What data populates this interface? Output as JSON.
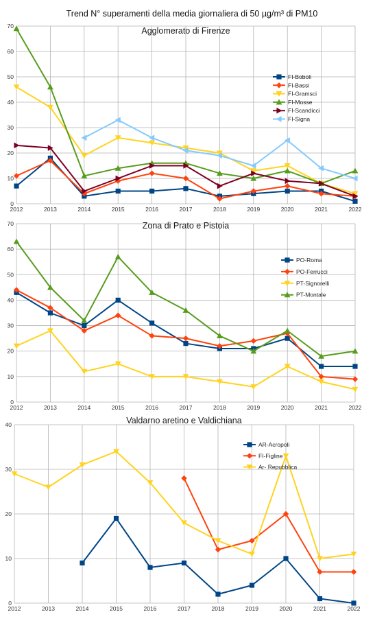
{
  "page_title": "Trend N° superamenti della media giornaliera di 50 µg/m³ di PM10",
  "chart_data": [
    {
      "type": "line",
      "title": "Agglomerato di Firenze",
      "xlabel": "",
      "ylabel": "",
      "x": [
        "2012",
        "2013",
        "2014",
        "2015",
        "2016",
        "2017",
        "2018",
        "2019",
        "2020",
        "2021",
        "2022"
      ],
      "ylim": [
        0,
        70
      ],
      "yticks": [
        0,
        10,
        20,
        30,
        40,
        50,
        60,
        70
      ],
      "grid": true,
      "legend_position": "right",
      "series": [
        {
          "name": "FI-Boboli",
          "color": "#004586",
          "marker": "square",
          "values": [
            7,
            18,
            3,
            5,
            5,
            6,
            3,
            4,
            5,
            5,
            1
          ]
        },
        {
          "name": "FI-Bassi",
          "color": "#ff420e",
          "marker": "diamond",
          "values": [
            11,
            17,
            4,
            9,
            12,
            10,
            2,
            5,
            7,
            4,
            3
          ]
        },
        {
          "name": "FI-Gramsci",
          "color": "#ffd320",
          "marker": "triangle-down",
          "values": [
            46,
            38,
            19,
            26,
            24,
            22,
            20,
            13,
            15,
            8,
            4
          ]
        },
        {
          "name": "FI-Mosse",
          "color": "#579d1c",
          "marker": "triangle-up",
          "values": [
            69,
            46,
            11,
            14,
            16,
            16,
            12,
            10,
            13,
            8,
            13
          ]
        },
        {
          "name": "FI-Scandicci",
          "color": "#7e0021",
          "marker": "triangle-right",
          "values": [
            23,
            22,
            5,
            10,
            15,
            15,
            7,
            12,
            9,
            8,
            3
          ]
        },
        {
          "name": "FI-Signa",
          "color": "#83caff",
          "marker": "triangle-left",
          "values": [
            null,
            null,
            26,
            33,
            26,
            21,
            19,
            15,
            25,
            14,
            10
          ]
        }
      ]
    },
    {
      "type": "line",
      "title": "Zona di Prato e Pistoia",
      "xlabel": "",
      "ylabel": "",
      "x": [
        "2012",
        "2013",
        "2014",
        "2015",
        "2016",
        "2017",
        "2018",
        "2019",
        "2020",
        "2021",
        "2022"
      ],
      "ylim": [
        0,
        70
      ],
      "yticks": [
        0,
        10,
        20,
        30,
        40,
        50,
        60,
        70
      ],
      "grid": true,
      "legend_position": "right",
      "series": [
        {
          "name": "PO-Roma",
          "color": "#004586",
          "marker": "square",
          "values": [
            43,
            35,
            30,
            40,
            31,
            23,
            21,
            21,
            25,
            14,
            14
          ]
        },
        {
          "name": "PO-Ferrucci",
          "color": "#ff420e",
          "marker": "diamond",
          "values": [
            44,
            37,
            28,
            34,
            26,
            25,
            22,
            24,
            27,
            10,
            9
          ]
        },
        {
          "name": "PT-Signorelli",
          "color": "#ffd320",
          "marker": "triangle-down",
          "values": [
            22,
            28,
            12,
            15,
            10,
            10,
            8,
            6,
            14,
            8,
            5
          ]
        },
        {
          "name": "PT-Montale",
          "color": "#579d1c",
          "marker": "triangle-up",
          "values": [
            63,
            45,
            32,
            57,
            43,
            36,
            26,
            20,
            28,
            18,
            20
          ]
        }
      ]
    },
    {
      "type": "line",
      "title": "Valdarno aretino e Valdichiana",
      "xlabel": "",
      "ylabel": "",
      "x": [
        "2012",
        "2013",
        "2014",
        "2015",
        "2016",
        "2017",
        "2018",
        "2019",
        "2020",
        "2021",
        "2022"
      ],
      "ylim": [
        0,
        40
      ],
      "yticks": [
        0,
        10,
        20,
        30,
        40
      ],
      "grid": true,
      "legend_position": "top-right",
      "series": [
        {
          "name": "AR-Acropoli",
          "color": "#004586",
          "marker": "square",
          "values": [
            null,
            null,
            9,
            19,
            8,
            9,
            2,
            4,
            10,
            1,
            0
          ]
        },
        {
          "name": "FI-Figline",
          "color": "#ff420e",
          "marker": "diamond",
          "values": [
            null,
            null,
            null,
            null,
            null,
            28,
            12,
            14,
            20,
            7,
            7
          ]
        },
        {
          "name": "Ar- Repubblica",
          "color": "#ffd320",
          "marker": "triangle-down",
          "values": [
            29,
            26,
            31,
            34,
            27,
            18,
            14,
            11,
            33,
            10,
            11
          ]
        }
      ]
    }
  ]
}
